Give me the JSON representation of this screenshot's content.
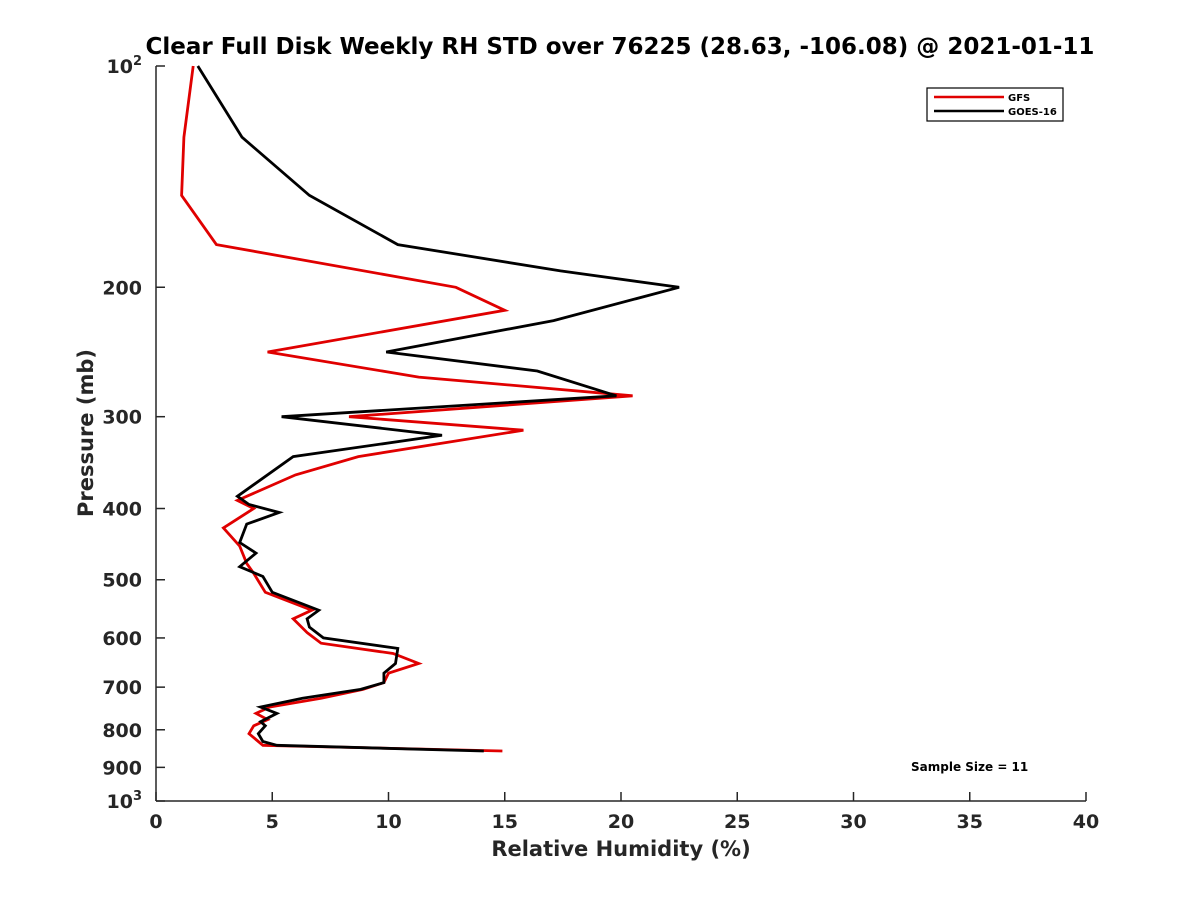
{
  "chart_data": {
    "type": "line",
    "title": "Clear Full Disk Weekly RH STD over 76225 (28.63, -106.08) @ 2021-01-11",
    "xlabel": "Relative Humidity (%)",
    "ylabel": "Pressure (mb)",
    "xlim": [
      0,
      40
    ],
    "ylim": [
      100,
      1000
    ],
    "y_scale": "log",
    "y_reversed": true,
    "x_ticks": [
      0,
      5,
      10,
      15,
      20,
      25,
      30,
      35,
      40
    ],
    "x_tick_labels": [
      "0",
      "5",
      "10",
      "15",
      "20",
      "25",
      "30",
      "35",
      "40"
    ],
    "y_ticks": [
      {
        "value": 100,
        "label": "10",
        "sup": "2"
      },
      {
        "value": 200,
        "label": "200",
        "sup": ""
      },
      {
        "value": 300,
        "label": "300",
        "sup": ""
      },
      {
        "value": 400,
        "label": "400",
        "sup": ""
      },
      {
        "value": 500,
        "label": "500",
        "sup": ""
      },
      {
        "value": 600,
        "label": "600",
        "sup": ""
      },
      {
        "value": 700,
        "label": "700",
        "sup": ""
      },
      {
        "value": 800,
        "label": "800",
        "sup": ""
      },
      {
        "value": 900,
        "label": "900",
        "sup": ""
      },
      {
        "value": 1000,
        "label": "10",
        "sup": "3"
      }
    ],
    "grid": false,
    "legend_position": "top-right",
    "annotation": "Sample Size = 11",
    "series": [
      {
        "name": "GFS",
        "color": "#e00000",
        "points": [
          [
            1.6,
            100
          ],
          [
            1.2,
            125
          ],
          [
            1.1,
            150
          ],
          [
            2.6,
            175
          ],
          [
            12.9,
            200
          ],
          [
            15.0,
            215
          ],
          [
            4.8,
            245
          ],
          [
            11.3,
            265
          ],
          [
            20.5,
            281
          ],
          [
            8.3,
            300
          ],
          [
            15.8,
            313
          ],
          [
            8.7,
            340
          ],
          [
            6.0,
            360
          ],
          [
            3.9,
            385
          ],
          [
            3.5,
            390
          ],
          [
            4.2,
            400
          ],
          [
            2.9,
            425
          ],
          [
            3.6,
            450
          ],
          [
            3.9,
            475
          ],
          [
            4.2,
            490
          ],
          [
            4.7,
            520
          ],
          [
            6.7,
            550
          ],
          [
            5.9,
            565
          ],
          [
            6.5,
            590
          ],
          [
            7.1,
            610
          ],
          [
            10.2,
            630
          ],
          [
            11.3,
            650
          ],
          [
            10.0,
            670
          ],
          [
            9.8,
            690
          ],
          [
            8.9,
            705
          ],
          [
            7.1,
            725
          ],
          [
            4.9,
            745
          ],
          [
            4.3,
            760
          ],
          [
            4.8,
            775
          ],
          [
            4.2,
            790
          ],
          [
            4.0,
            810
          ],
          [
            4.6,
            840
          ],
          [
            14.9,
            855
          ]
        ]
      },
      {
        "name": "GOES-16",
        "color": "#000000",
        "points": [
          [
            1.8,
            100
          ],
          [
            3.7,
            125
          ],
          [
            6.6,
            150
          ],
          [
            10.4,
            175
          ],
          [
            17.4,
            190
          ],
          [
            22.5,
            200
          ],
          [
            17.1,
            222
          ],
          [
            9.9,
            245
          ],
          [
            16.4,
            260
          ],
          [
            19.8,
            281
          ],
          [
            5.4,
            300
          ],
          [
            12.3,
            318
          ],
          [
            5.9,
            340
          ],
          [
            3.5,
            385
          ],
          [
            4.0,
            395
          ],
          [
            5.3,
            405
          ],
          [
            3.9,
            420
          ],
          [
            3.6,
            445
          ],
          [
            4.3,
            460
          ],
          [
            3.6,
            480
          ],
          [
            4.6,
            495
          ],
          [
            5.0,
            520
          ],
          [
            7.0,
            550
          ],
          [
            6.5,
            565
          ],
          [
            6.6,
            580
          ],
          [
            7.2,
            600
          ],
          [
            10.4,
            620
          ],
          [
            10.3,
            650
          ],
          [
            9.8,
            670
          ],
          [
            9.8,
            690
          ],
          [
            8.8,
            705
          ],
          [
            6.3,
            725
          ],
          [
            4.5,
            745
          ],
          [
            5.2,
            760
          ],
          [
            4.5,
            780
          ],
          [
            4.7,
            790
          ],
          [
            4.4,
            810
          ],
          [
            4.6,
            830
          ],
          [
            5.2,
            840
          ],
          [
            14.1,
            855
          ]
        ]
      }
    ]
  },
  "legend": {
    "items": [
      {
        "label": "GFS",
        "color": "#e00000"
      },
      {
        "label": "GOES-16",
        "color": "#000000"
      }
    ]
  }
}
